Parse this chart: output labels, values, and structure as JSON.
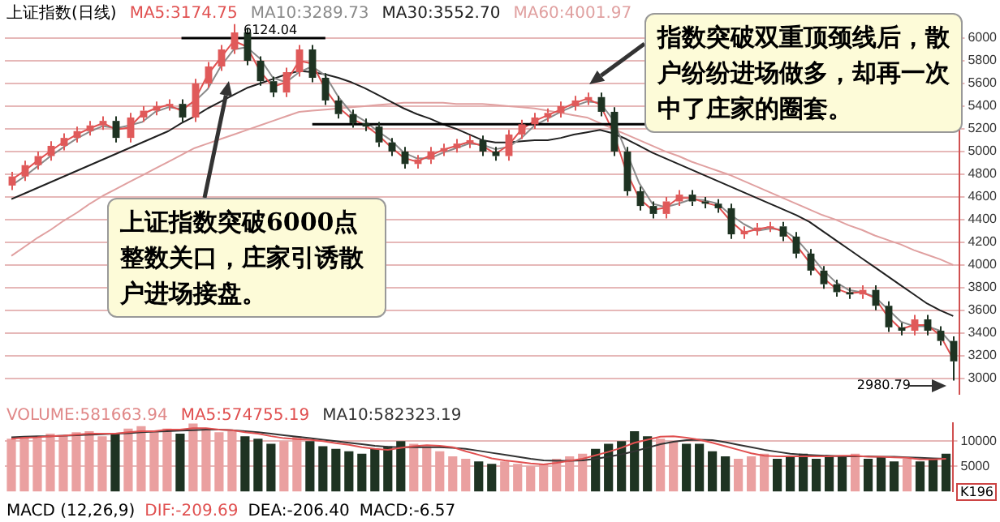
{
  "chart_data": [
    {
      "type": "candlestick",
      "title": "上证指数(日线)",
      "categories": [
        null,
        null,
        null,
        null,
        null,
        null,
        null,
        null,
        null,
        null,
        null,
        null,
        null,
        null,
        null,
        null,
        null,
        null,
        null,
        null,
        null,
        null,
        null,
        null,
        null,
        null,
        null,
        null,
        null,
        null,
        null,
        null,
        null,
        null,
        null,
        null,
        null,
        null,
        null,
        null,
        null,
        null,
        null,
        null,
        null,
        null,
        null,
        null,
        null,
        null,
        null,
        null,
        null,
        null,
        null,
        null,
        null,
        null,
        null,
        null,
        null,
        null,
        null,
        null,
        null,
        null,
        null,
        null,
        null,
        null,
        null,
        null,
        null
      ],
      "ohlc": [
        [
          4700,
          4820,
          4660,
          4780
        ],
        [
          4780,
          4920,
          4740,
          4880
        ],
        [
          4880,
          5000,
          4840,
          4960
        ],
        [
          4960,
          5090,
          4920,
          5050
        ],
        [
          5050,
          5160,
          5010,
          5120
        ],
        [
          5120,
          5220,
          5080,
          5180
        ],
        [
          5180,
          5270,
          5140,
          5230
        ],
        [
          5230,
          5310,
          5190,
          5270
        ],
        [
          5270,
          5310,
          5080,
          5120
        ],
        [
          5120,
          5340,
          5080,
          5300
        ],
        [
          5300,
          5400,
          5260,
          5360
        ],
        [
          5360,
          5440,
          5320,
          5400
        ],
        [
          5400,
          5460,
          5360,
          5420
        ],
        [
          5420,
          5460,
          5260,
          5300
        ],
        [
          5300,
          5640,
          5260,
          5600
        ],
        [
          5600,
          5790,
          5560,
          5750
        ],
        [
          5750,
          5940,
          5710,
          5900
        ],
        [
          5900,
          6124.04,
          5860,
          6050
        ],
        [
          6050,
          6090,
          5760,
          5800
        ],
        [
          5800,
          5840,
          5580,
          5620
        ],
        [
          5620,
          5660,
          5480,
          5520
        ],
        [
          5520,
          5740,
          5480,
          5700
        ],
        [
          5700,
          5940,
          5660,
          5900
        ],
        [
          5900,
          5940,
          5610,
          5650
        ],
        [
          5650,
          5690,
          5410,
          5450
        ],
        [
          5450,
          5490,
          5290,
          5330
        ],
        [
          5330,
          5370,
          5210,
          5250
        ],
        [
          5250,
          5290,
          5180,
          5220
        ],
        [
          5220,
          5260,
          5040,
          5080
        ],
        [
          5080,
          5120,
          4960,
          5000
        ],
        [
          5000,
          5040,
          4850,
          4890
        ],
        [
          4890,
          4970,
          4850,
          4930
        ],
        [
          4930,
          5040,
          4890,
          5000
        ],
        [
          5000,
          5070,
          4960,
          5030
        ],
        [
          5030,
          5110,
          4990,
          5070
        ],
        [
          5070,
          5140,
          5030,
          5100
        ],
        [
          5100,
          5140,
          4960,
          5000
        ],
        [
          5000,
          5040,
          4920,
          4960
        ],
        [
          4960,
          5190,
          4920,
          5150
        ],
        [
          5150,
          5280,
          5110,
          5240
        ],
        [
          5240,
          5340,
          5200,
          5300
        ],
        [
          5300,
          5380,
          5260,
          5340
        ],
        [
          5340,
          5440,
          5300,
          5400
        ],
        [
          5400,
          5490,
          5360,
          5450
        ],
        [
          5450,
          5520,
          5410,
          5480
        ],
        [
          5480,
          5520,
          5310,
          5350
        ],
        [
          5350,
          5390,
          4960,
          5000
        ],
        [
          5000,
          5040,
          4610,
          4650
        ],
        [
          4650,
          4690,
          4480,
          4520
        ],
        [
          4520,
          4560,
          4410,
          4450
        ],
        [
          4450,
          4600,
          4410,
          4560
        ],
        [
          4560,
          4660,
          4520,
          4620
        ],
        [
          4620,
          4660,
          4520,
          4560
        ],
        [
          4560,
          4600,
          4500,
          4540
        ],
        [
          4540,
          4580,
          4460,
          4500
        ],
        [
          4500,
          4540,
          4230,
          4270
        ],
        [
          4270,
          4340,
          4230,
          4300
        ],
        [
          4300,
          4370,
          4260,
          4330
        ],
        [
          4330,
          4380,
          4290,
          4340
        ],
        [
          4340,
          4380,
          4210,
          4250
        ],
        [
          4250,
          4290,
          4060,
          4100
        ],
        [
          4100,
          4140,
          3910,
          3950
        ],
        [
          3950,
          3990,
          3790,
          3830
        ],
        [
          3830,
          3870,
          3720,
          3760
        ],
        [
          3760,
          3800,
          3700,
          3740
        ],
        [
          3740,
          3820,
          3700,
          3780
        ],
        [
          3780,
          3820,
          3600,
          3640
        ],
        [
          3640,
          3680,
          3410,
          3450
        ],
        [
          3450,
          3490,
          3380,
          3420
        ],
        [
          3420,
          3560,
          3380,
          3520
        ],
        [
          3520,
          3560,
          3380,
          3420
        ],
        [
          3420,
          3460,
          3290,
          3330
        ],
        [
          3330,
          3370,
          2980.79,
          3150
        ]
      ],
      "colors": [
        "#e05a5a",
        "#e05a5a",
        "#e05a5a",
        "#e05a5a",
        "#e05a5a",
        "#e05a5a",
        "#e05a5a",
        "#e05a5a",
        "#1e3322",
        "#e05a5a",
        "#e05a5a",
        "#e05a5a",
        "#e05a5a",
        "#1e3322",
        "#e05a5a",
        "#e05a5a",
        "#e05a5a",
        "#e05a5a",
        "#1e3322",
        "#1e3322",
        "#1e3322",
        "#e05a5a",
        "#e05a5a",
        "#1e3322",
        "#1e3322",
        "#1e3322",
        "#1e3322",
        "#1e3322",
        "#1e3322",
        "#1e3322",
        "#1e3322",
        "#e05a5a",
        "#e05a5a",
        "#e05a5a",
        "#e05a5a",
        "#e05a5a",
        "#1e3322",
        "#1e3322",
        "#e05a5a",
        "#e05a5a",
        "#e05a5a",
        "#e05a5a",
        "#e05a5a",
        "#e05a5a",
        "#e05a5a",
        "#1e3322",
        "#1e3322",
        "#1e3322",
        "#1e3322",
        "#1e3322",
        "#e05a5a",
        "#e05a5a",
        "#1e3322",
        "#1e3322",
        "#1e3322",
        "#1e3322",
        "#e05a5a",
        "#e05a5a",
        "#e05a5a",
        "#1e3322",
        "#1e3322",
        "#1e3322",
        "#1e3322",
        "#1e3322",
        "#1e3322",
        "#e05a5a",
        "#1e3322",
        "#1e3322",
        "#1e3322",
        "#e05a5a",
        "#1e3322",
        "#1e3322",
        "#1e3322"
      ],
      "series": [
        {
          "type": "line",
          "name": "MA5:3174.75",
          "color": "#e05050",
          "values": [
            4750,
            4830,
            4920,
            5005,
            5085,
            5150,
            5205,
            5250,
            5195,
            5210,
            5330,
            5380,
            5410,
            5360,
            5450,
            5675,
            5825,
            5975,
            5925,
            5710,
            5570,
            5610,
            5800,
            5775,
            5550,
            5390,
            5290,
            5235,
            5150,
            5040,
            4945,
            4910,
            4965,
            5015,
            5050,
            5085,
            5050,
            4980,
            5055,
            5195,
            5270,
            5320,
            5370,
            5425,
            5465,
            5415,
            5175,
            4825,
            4585,
            4485,
            4505,
            4590,
            4590,
            4550,
            4520,
            4385,
            4285,
            4315,
            4335,
            4295,
            4175,
            4025,
            3890,
            3795,
            3750,
            3760,
            3710,
            3545,
            3435,
            3470,
            3470,
            3380,
            3170
          ]
        },
        {
          "type": "line",
          "name": "MA10:3289.73",
          "color": "#8a8a8a",
          "values": [
            4700,
            4780,
            4870,
            4960,
            5040,
            5115,
            5175,
            5225,
            5205,
            5230,
            5260,
            5350,
            5390,
            5375,
            5440,
            5550,
            5750,
            5900,
            5920,
            5820,
            5650,
            5610,
            5700,
            5750,
            5670,
            5480,
            5340,
            5270,
            5180,
            5100,
            4990,
            4940,
            4940,
            4990,
            5030,
            5070,
            5060,
            5020,
            5040,
            5120,
            5230,
            5290,
            5350,
            5400,
            5440,
            5430,
            5280,
            5000,
            4720,
            4540,
            4510,
            4540,
            4580,
            4570,
            4540,
            4440,
            4360,
            4300,
            4320,
            4310,
            4230,
            4100,
            3960,
            3850,
            3780,
            3760,
            3720,
            3610,
            3500,
            3460,
            3460,
            3420,
            3290
          ]
        },
        {
          "type": "line",
          "name": "MA30:3552.70",
          "color": "#202020",
          "values": [
            4580,
            4630,
            4680,
            4730,
            4780,
            4830,
            4880,
            4930,
            4980,
            5030,
            5080,
            5130,
            5180,
            5250,
            5310,
            5380,
            5440,
            5500,
            5560,
            5600,
            5640,
            5680,
            5710,
            5700,
            5680,
            5650,
            5610,
            5560,
            5500,
            5440,
            5380,
            5330,
            5290,
            5240,
            5200,
            5150,
            5100,
            5080,
            5080,
            5090,
            5100,
            5100,
            5120,
            5150,
            5170,
            5190,
            5160,
            5110,
            5050,
            4990,
            4940,
            4890,
            4840,
            4790,
            4740,
            4690,
            4640,
            4590,
            4540,
            4490,
            4440,
            4380,
            4300,
            4220,
            4140,
            4060,
            3980,
            3900,
            3820,
            3740,
            3660,
            3600,
            3550
          ]
        },
        {
          "type": "line",
          "name": "MA60:4001.97",
          "color": "#e0a0a0",
          "values": [
            4080,
            4160,
            4240,
            4310,
            4390,
            4460,
            4540,
            4610,
            4670,
            4730,
            4790,
            4850,
            4910,
            4970,
            5030,
            5070,
            5110,
            5150,
            5190,
            5230,
            5270,
            5310,
            5350,
            5360,
            5370,
            5380,
            5390,
            5400,
            5410,
            5420,
            5430,
            5430,
            5430,
            5430,
            5420,
            5420,
            5420,
            5410,
            5400,
            5390,
            5380,
            5360,
            5340,
            5320,
            5300,
            5250,
            5200,
            5150,
            5100,
            5050,
            5000,
            4960,
            4910,
            4870,
            4830,
            4790,
            4740,
            4690,
            4640,
            4590,
            4540,
            4490,
            4440,
            4400,
            4350,
            4310,
            4260,
            4220,
            4180,
            4130,
            4090,
            4050,
            4000
          ]
        }
      ],
      "ylim": [
        2860,
        6150
      ],
      "yticks": [
        3000,
        3200,
        3400,
        3600,
        3800,
        4000,
        4200,
        4400,
        4600,
        4800,
        5000,
        5200,
        5400,
        5600,
        5800,
        6000
      ],
      "grid": "y",
      "legend": "top left",
      "tick_labels": "y",
      "ref_lines": [
        {
          "axis": "y",
          "value": 6000,
          "color": "#000000"
        },
        {
          "axis": "y",
          "value": 5240,
          "color": "#000000"
        }
      ],
      "annotations": [
        "上证指数突破6000点整数关口，庄家引诱散户进场接盘。",
        "指数突破双重顶颈线后，散户纷纷进场做多，却再一次中了庄家的圈套。",
        "6124.04",
        "2980.79"
      ]
    },
    {
      "type": "bar",
      "categories": [
        null,
        null,
        null,
        null,
        null,
        null,
        null,
        null,
        null,
        null,
        null,
        null,
        null,
        null,
        null,
        null,
        null,
        null,
        null,
        null,
        null,
        null,
        null,
        null,
        null,
        null,
        null,
        null,
        null,
        null,
        null,
        null,
        null,
        null,
        null,
        null,
        null,
        null,
        null,
        null,
        null,
        null,
        null,
        null,
        null,
        null,
        null,
        null,
        null,
        null,
        null,
        null,
        null,
        null,
        null,
        null,
        null,
        null,
        null,
        null,
        null,
        null,
        null,
        null,
        null,
        null,
        null,
        null,
        null,
        null,
        null,
        null,
        null
      ],
      "series": [
        {
          "name": "VOLUME:581663.94",
          "color": "#e08888",
          "colors": [
            "#eaa0a0",
            "#eaa0a0",
            "#eaa0a0",
            "#eaa0a0",
            "#eaa0a0",
            "#eaa0a0",
            "#eaa0a0",
            "#eaa0a0",
            "#1e3322",
            "#eaa0a0",
            "#eaa0a0",
            "#eaa0a0",
            "#eaa0a0",
            "#1e3322",
            "#eaa0a0",
            "#eaa0a0",
            "#eaa0a0",
            "#eaa0a0",
            "#1e3322",
            "#1e3322",
            "#1e3322",
            "#eaa0a0",
            "#eaa0a0",
            "#1e3322",
            "#1e3322",
            "#1e3322",
            "#1e3322",
            "#1e3322",
            "#1e3322",
            "#1e3322",
            "#1e3322",
            "#eaa0a0",
            "#eaa0a0",
            "#eaa0a0",
            "#eaa0a0",
            "#eaa0a0",
            "#1e3322",
            "#1e3322",
            "#eaa0a0",
            "#eaa0a0",
            "#eaa0a0",
            "#eaa0a0",
            "#eaa0a0",
            "#eaa0a0",
            "#eaa0a0",
            "#1e3322",
            "#1e3322",
            "#1e3322",
            "#1e3322",
            "#1e3322",
            "#eaa0a0",
            "#eaa0a0",
            "#1e3322",
            "#1e3322",
            "#1e3322",
            "#1e3322",
            "#eaa0a0",
            "#eaa0a0",
            "#eaa0a0",
            "#1e3322",
            "#1e3322",
            "#1e3322",
            "#1e3322",
            "#1e3322",
            "#1e3322",
            "#eaa0a0",
            "#1e3322",
            "#1e3322",
            "#1e3322",
            "#eaa0a0",
            "#1e3322",
            "#1e3322",
            "#1e3322"
          ],
          "values": [
            10500,
            11000,
            10800,
            11500,
            11200,
            11800,
            12000,
            11000,
            11500,
            12500,
            13000,
            12000,
            12500,
            11500,
            13500,
            12500,
            11800,
            12000,
            11000,
            10500,
            9500,
            10000,
            11000,
            10000,
            9000,
            8500,
            8000,
            7500,
            8500,
            9000,
            10000,
            9500,
            9000,
            8000,
            7000,
            6500,
            6000,
            5500,
            6000,
            5500,
            5000,
            5500,
            6500,
            7000,
            7500,
            8500,
            9500,
            10000,
            12000,
            11000,
            10500,
            10000,
            9500,
            9500,
            8000,
            7000,
            6500,
            7000,
            7500,
            6500,
            7000,
            7500,
            6500,
            7000,
            7000,
            7500,
            6500,
            7000,
            6000,
            6500,
            6000,
            6500,
            7500
          ]
        },
        {
          "type": "line",
          "name": "MA5:574755.19",
          "color": "#e05050",
          "values": [
            10500,
            10700,
            10800,
            11000,
            11100,
            11300,
            11500,
            11500,
            11500,
            11800,
            12000,
            12000,
            12300,
            12300,
            12600,
            12600,
            12300,
            12200,
            11800,
            11500,
            11000,
            10600,
            10400,
            10300,
            10000,
            9600,
            9300,
            8800,
            8500,
            8300,
            8700,
            9000,
            9200,
            9100,
            8800,
            8000,
            7300,
            6600,
            6200,
            5900,
            5600,
            5400,
            5700,
            6100,
            6500,
            7200,
            7900,
            8700,
            9700,
            10300,
            10900,
            11000,
            10700,
            10300,
            9700,
            9000,
            8300,
            7600,
            7100,
            7000,
            7000,
            7000,
            7000,
            7000,
            7100,
            7100,
            6900,
            6900,
            6800,
            6700,
            6400,
            6400,
            6500
          ]
        },
        {
          "type": "line",
          "name": "MA10:582323.19",
          "color": "#333333",
          "values": [
            10800,
            10900,
            11000,
            11000,
            11100,
            11200,
            11300,
            11400,
            11500,
            11600,
            11800,
            11900,
            12000,
            12100,
            12200,
            12300,
            12300,
            12200,
            12000,
            11800,
            11500,
            11200,
            10900,
            10600,
            10300,
            10000,
            9700,
            9400,
            9100,
            8900,
            8800,
            8800,
            8800,
            8800,
            8700,
            8500,
            8100,
            7700,
            7300,
            6900,
            6500,
            6200,
            6100,
            6100,
            6200,
            6500,
            6900,
            7400,
            8000,
            8700,
            9400,
            9900,
            10200,
            10300,
            10200,
            9800,
            9300,
            8800,
            8300,
            7900,
            7500,
            7300,
            7200,
            7100,
            7000,
            7000,
            7000,
            6900,
            6900,
            6800,
            6700,
            6600,
            6500
          ]
        }
      ],
      "ylim": [
        0,
        13600
      ],
      "yticks": [
        5000,
        10000
      ],
      "grid": "y",
      "legend": "top left",
      "tick_labels": "y",
      "annotations": [
        "MACD (12,26,9)",
        "DIF:-209.69",
        "DEA:-206.40",
        "MACD:-6.57",
        "K196"
      ]
    }
  ]
}
